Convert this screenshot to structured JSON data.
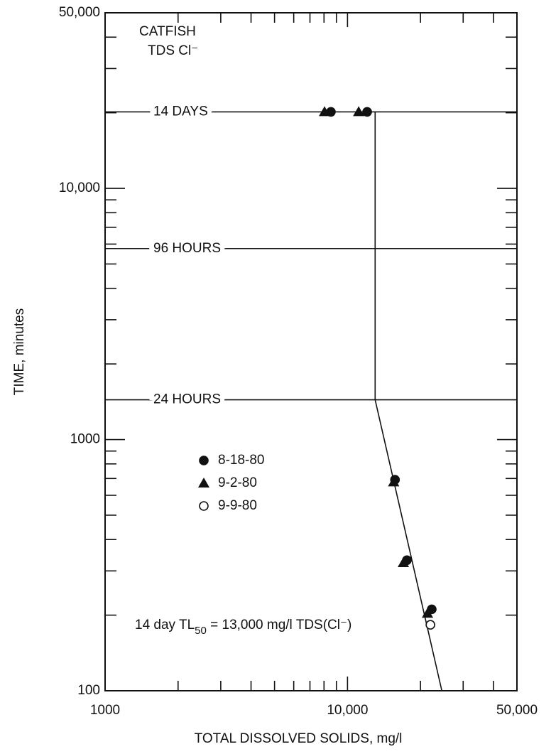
{
  "chart_data": {
    "type": "scatter",
    "title_lines": [
      "CATFISH",
      "TDS Cl⁻"
    ],
    "xlabel": "TOTAL DISSOLVED SOLIDS, mg/l",
    "ylabel": "TIME, minutes",
    "xscale": "log",
    "yscale": "log",
    "xlim": [
      1000,
      50000
    ],
    "ylim": [
      100,
      50000
    ],
    "xticks": [
      1000,
      {
        "value": 10000,
        "label": "10,000"
      },
      {
        "value": 50000,
        "label": "50,000"
      }
    ],
    "yticks": [
      100,
      1000,
      {
        "value": 10000,
        "label": "10,000"
      },
      {
        "value": 50000,
        "label": "50,000"
      }
    ],
    "xminor": [
      2000,
      3000,
      4000,
      5000,
      6000,
      7000,
      8000,
      9000,
      20000,
      30000,
      40000
    ],
    "yminor": [
      200,
      300,
      400,
      500,
      600,
      700,
      800,
      900,
      2000,
      3000,
      4000,
      5000,
      6000,
      7000,
      8000,
      9000,
      20000,
      30000,
      40000
    ],
    "reference_lines": [
      {
        "label": "14 DAYS",
        "value": 20160
      },
      {
        "label": "96 HOURS",
        "value": 5760
      },
      {
        "label": "24 HOURS",
        "value": 1440
      }
    ],
    "series": [
      {
        "name": "8-18-80",
        "marker": "circle-filled",
        "color": "#111111",
        "x": [
          8540,
          12050,
          15700,
          17580,
          22260
        ],
        "values": [
          20160,
          20160,
          692,
          331,
          211
        ]
      },
      {
        "name": "9-2-80",
        "marker": "triangle",
        "color": "#111111",
        "x": [
          8040,
          11120,
          15500,
          17000,
          21380
        ],
        "values": [
          20160,
          20160,
          677,
          323,
          203
        ]
      },
      {
        "name": "9-9-80",
        "marker": "circle-open",
        "color": "#111111",
        "x": [
          21980
        ],
        "values": [
          183
        ]
      }
    ],
    "fit": {
      "x": [
        13000,
        13000,
        24500
      ],
      "values": [
        20160,
        1440,
        100
      ]
    },
    "annotation": {
      "parts": [
        "14 day TL",
        "50",
        " = 13,000 mg/l TDS(Cl⁻)"
      ]
    }
  }
}
